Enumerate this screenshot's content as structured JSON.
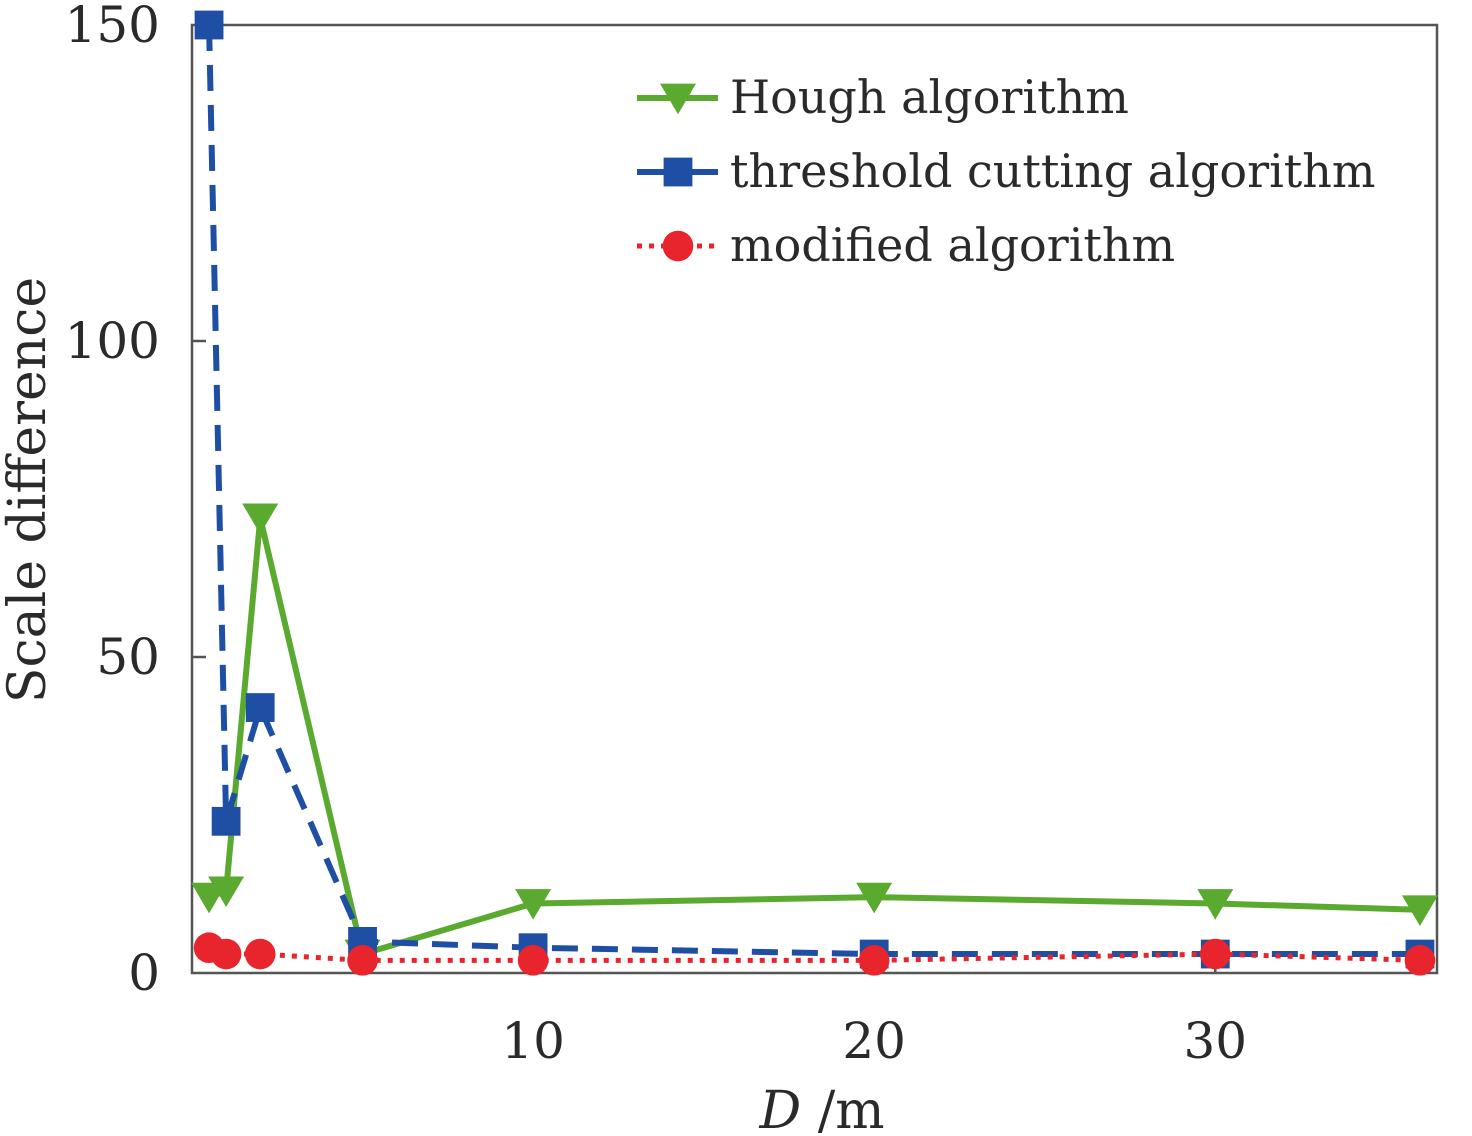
{
  "chart_data": {
    "type": "line",
    "title": "",
    "xlabel_var": "D",
    "xlabel_unit": " /m",
    "ylabel": "Scale difference",
    "xlim": [
      0,
      36.5
    ],
    "ylim": [
      0,
      150
    ],
    "xticks": [
      10,
      20,
      30
    ],
    "yticks": [
      0,
      50,
      100,
      150
    ],
    "grid": false,
    "legend_position": "top-right",
    "series": [
      {
        "name": "Hough algorithm",
        "color": "#5aaa30",
        "line_style": "solid",
        "marker": "triangle-down",
        "x": [
          0.5,
          1,
          2,
          5,
          10,
          20,
          30,
          36
        ],
        "y": [
          12,
          13,
          72,
          3,
          11,
          12,
          11,
          10
        ]
      },
      {
        "name": "threshold cutting algorithm",
        "color": "#1f4fa5",
        "line_style": "dashed",
        "marker": "square",
        "x": [
          0.5,
          1,
          2,
          5,
          10,
          20,
          30,
          36
        ],
        "y": [
          150,
          24,
          42,
          5,
          4,
          3,
          3,
          3
        ]
      },
      {
        "name": "modified algorithm",
        "color": "#e8242c",
        "line_style": "dotted",
        "marker": "circle",
        "x": [
          0.5,
          1,
          2,
          5,
          10,
          20,
          30,
          36
        ],
        "y": [
          4,
          3,
          3,
          2,
          2,
          2,
          3,
          2
        ]
      }
    ]
  }
}
